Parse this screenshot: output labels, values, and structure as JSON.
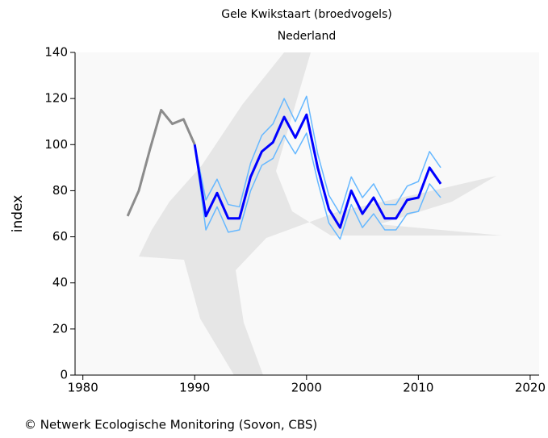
{
  "chart_data": {
    "type": "line",
    "title": "Gele Kwikstaart (broedvogels)",
    "subtitle": "Nederland",
    "y_label": "index",
    "footer": "© Netwerk Ecologische Monitoring (Sovon, CBS)",
    "xlim": [
      1979.3,
      2020.8
    ],
    "xticks": [
      1980,
      1990,
      2000,
      2010,
      2020
    ],
    "ylim": [
      0,
      140
    ],
    "yticks": [
      0,
      20,
      40,
      60,
      80,
      100,
      120,
      140
    ],
    "series": [
      {
        "color": "#8c8c8c",
        "width": 3,
        "x": [
          1984,
          1985,
          1986,
          1987,
          1988,
          1989,
          1990
        ],
        "values": [
          69,
          80,
          98,
          115,
          109,
          111,
          100
        ]
      },
      {
        "color": "#66b8ff",
        "width": 1.5,
        "x": [
          1990,
          1991,
          1992,
          1993,
          1994,
          1995,
          1996,
          1997,
          1998,
          1999,
          2000,
          2001,
          2002,
          2003,
          2004,
          2005,
          2006,
          2007,
          2008,
          2009,
          2010,
          2011,
          2012
        ],
        "values": [
          100,
          76,
          85,
          74,
          73,
          92,
          104,
          109,
          120,
          110,
          121,
          96,
          78,
          70,
          86,
          77,
          83,
          74,
          74,
          82,
          84,
          97,
          90
        ]
      },
      {
        "color": "#66b8ff",
        "width": 1.5,
        "x": [
          1990,
          1991,
          1992,
          1993,
          1994,
          1995,
          1996,
          1997,
          1998,
          1999,
          2000,
          2001,
          2002,
          2003,
          2004,
          2005,
          2006,
          2007,
          2008,
          2009,
          2010,
          2011,
          2012
        ],
        "values": [
          100,
          63,
          73,
          62,
          63,
          80,
          91,
          94,
          104,
          96,
          105,
          84,
          66,
          59,
          74,
          64,
          70,
          63,
          63,
          70,
          71,
          83,
          77
        ]
      },
      {
        "color": "#0000ff",
        "width": 3,
        "x": [
          1990,
          1991,
          1992,
          1993,
          1994,
          1995,
          1996,
          1997,
          1998,
          1999,
          2000,
          2001,
          2002,
          2003,
          2004,
          2005,
          2006,
          2007,
          2008,
          2009,
          2010,
          2011,
          2012
        ],
        "values": [
          100,
          69,
          79,
          68,
          68,
          86,
          97,
          101,
          112,
          103,
          113,
          90,
          72,
          64,
          80,
          70,
          77,
          68,
          68,
          76,
          77,
          90,
          83
        ]
      }
    ]
  }
}
